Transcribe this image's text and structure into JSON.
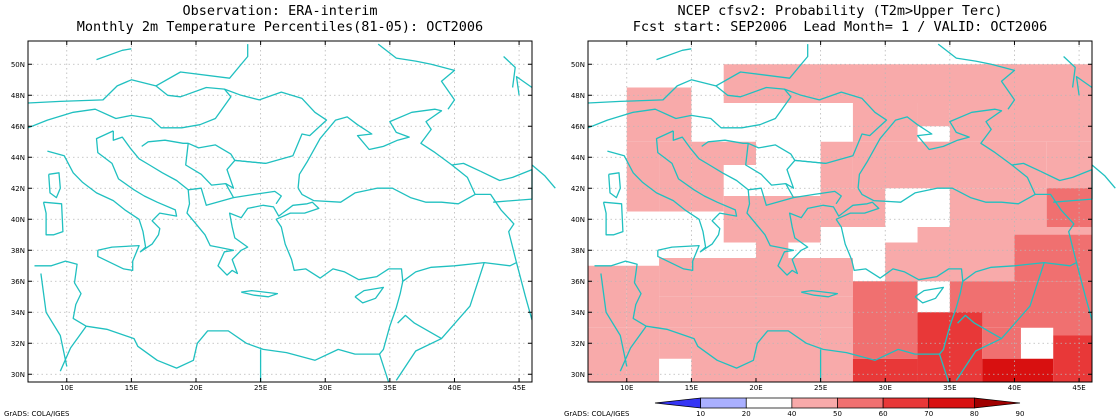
{
  "left_panel": {
    "title_line1": "Observation: ERA-interim",
    "title_line2": "Monthly 2m Temperature Percentiles(81-05): OCT2006",
    "footer": "GrADS: COLA/IGES"
  },
  "right_panel": {
    "title_line1": "NCEP cfsv2: Probability (T2m>Upper Terc)",
    "title_line2": "Fcst start: SEP2006  Lead Month= 1 / VALID: OCT2006",
    "footer": "GrADS: COLA/IGES"
  },
  "map": {
    "lon_range": [
      7,
      46
    ],
    "lat_range": [
      29.5,
      51.5
    ],
    "lon_ticks": [
      10,
      15,
      20,
      25,
      30,
      35,
      40,
      45
    ],
    "lat_ticks": [
      30,
      32,
      34,
      36,
      38,
      40,
      42,
      44,
      46,
      48,
      50
    ],
    "lon_tick_labels": [
      "10E",
      "15E",
      "20E",
      "25E",
      "30E",
      "35E",
      "40E",
      "45E"
    ],
    "lat_tick_labels": [
      "30N",
      "32N",
      "34N",
      "36N",
      "38N",
      "40N",
      "42N",
      "44N",
      "46N",
      "48N",
      "50N"
    ],
    "coast_color": "#20c0c0",
    "grid": true
  },
  "colorbar": {
    "labels": [
      "10",
      "20",
      "40",
      "50",
      "60",
      "70",
      "80",
      "90"
    ],
    "colors": [
      "#3535f5",
      "#aab0ff",
      "#ffffff",
      "#f8aaaa",
      "#f07070",
      "#e83838",
      "#d81010",
      "#a00000"
    ]
  },
  "chart_data": {
    "type": "heatmap",
    "description_units": "probability percent class per 2.5deg box (lon0, lat0 = lower-left corner)",
    "cells": [
      {
        "lon": 17.5,
        "lat": 47.5,
        "w": 22.5,
        "h": 2.5,
        "v": 45
      },
      {
        "lon": 10.0,
        "lat": 45.0,
        "w": 5,
        "h": 3.5,
        "v": 45
      },
      {
        "lon": 27.5,
        "lat": 45.0,
        "w": 5,
        "h": 3.0,
        "v": 45
      },
      {
        "lon": 32.5,
        "lat": 46.0,
        "w": 2.5,
        "h": 2.5,
        "v": 45
      },
      {
        "lon": 37.5,
        "lat": 47.5,
        "w": 8.5,
        "h": 2.5,
        "v": 45
      },
      {
        "lon": 35.0,
        "lat": 45.0,
        "w": 11,
        "h": 2.5,
        "v": 45
      },
      {
        "lon": 10.0,
        "lat": 40.5,
        "w": 2.5,
        "h": 4.5,
        "v": 45
      },
      {
        "lon": 12.5,
        "lat": 41.5,
        "w": 2.5,
        "h": 3.5,
        "v": 45
      },
      {
        "lon": 15.0,
        "lat": 43.5,
        "w": 5,
        "h": 1.5,
        "v": 45
      },
      {
        "lon": 25.0,
        "lat": 42.0,
        "w": 2.5,
        "h": 3,
        "v": 45
      },
      {
        "lon": 27.5,
        "lat": 42.0,
        "w": 15,
        "h": 3,
        "v": 45
      },
      {
        "lon": 42.5,
        "lat": 39.5,
        "w": 3.5,
        "h": 5.5,
        "v": 45
      },
      {
        "lon": 12.5,
        "lat": 40.5,
        "w": 2.5,
        "h": 1,
        "v": 45
      },
      {
        "lon": 15.0,
        "lat": 40.5,
        "w": 2.5,
        "h": 3,
        "v": 45
      },
      {
        "lon": 20.0,
        "lat": 38.5,
        "w": 5,
        "h": 3,
        "v": 45
      },
      {
        "lon": 17.5,
        "lat": 40.5,
        "w": 2.5,
        "h": 1,
        "v": 45
      },
      {
        "lon": 25.0,
        "lat": 39.5,
        "w": 5,
        "h": 2.5,
        "v": 45
      },
      {
        "lon": 35.0,
        "lat": 39.5,
        "w": 7.5,
        "h": 2.5,
        "v": 45
      },
      {
        "lon": 7.0,
        "lat": 33.0,
        "w": 3,
        "h": 4,
        "v": 45
      },
      {
        "lon": 7.0,
        "lat": 29.5,
        "w": 3,
        "h": 3.5,
        "v": 45
      },
      {
        "lon": 10.0,
        "lat": 33.0,
        "w": 2.5,
        "h": 4,
        "v": 45
      },
      {
        "lon": 12.5,
        "lat": 35.0,
        "w": 15,
        "h": 2.5,
        "v": 45
      },
      {
        "lon": 12.5,
        "lat": 33.0,
        "w": 20,
        "h": 2,
        "v": 45
      },
      {
        "lon": 15.0,
        "lat": 29.5,
        "w": 10,
        "h": 3.5,
        "v": 45
      },
      {
        "lon": 10.0,
        "lat": 29.5,
        "w": 2.5,
        "h": 3.5,
        "v": 45
      },
      {
        "lon": 12.5,
        "lat": 31.0,
        "w": 2.5,
        "h": 2,
        "v": 45
      },
      {
        "lon": 25.0,
        "lat": 29.5,
        "w": 2.5,
        "h": 3.5,
        "v": 45
      },
      {
        "lon": 30.0,
        "lat": 36.0,
        "w": 16,
        "h": 2.5,
        "v": 45
      },
      {
        "lon": 32.5,
        "lat": 37.5,
        "w": 13.5,
        "h": 2,
        "v": 45
      },
      {
        "lon": 17.5,
        "lat": 38.5,
        "w": 2.5,
        "h": 2,
        "v": 45
      },
      {
        "lon": 20.0,
        "lat": 36.5,
        "w": 2.5,
        "h": 2,
        "v": 45
      },
      {
        "lon": 25.0,
        "lat": 36.5,
        "w": 2.5,
        "h": 1,
        "v": 45
      },
      {
        "lon": 27.5,
        "lat": 31.0,
        "w": 5,
        "h": 5,
        "v": 55
      },
      {
        "lon": 40.0,
        "lat": 36.0,
        "w": 6,
        "h": 3,
        "v": 55
      },
      {
        "lon": 35.0,
        "lat": 33.0,
        "w": 11,
        "h": 3,
        "v": 55
      },
      {
        "lon": 37.5,
        "lat": 31.0,
        "w": 3,
        "h": 2,
        "v": 55
      },
      {
        "lon": 43.0,
        "lat": 32.5,
        "w": 3,
        "h": 1,
        "v": 55
      },
      {
        "lon": 32.5,
        "lat": 29.5,
        "w": 5,
        "h": 4.5,
        "v": 65
      },
      {
        "lon": 43.0,
        "lat": 29.5,
        "w": 3,
        "h": 3,
        "v": 65
      },
      {
        "lon": 27.5,
        "lat": 29.5,
        "w": 5,
        "h": 1.5,
        "v": 65
      },
      {
        "lon": 37.5,
        "lat": 29.5,
        "w": 5.5,
        "h": 1.5,
        "v": 75
      },
      {
        "lon": 42.5,
        "lat": 39.5,
        "w": 3.5,
        "h": 2.5,
        "v": 55
      }
    ]
  }
}
